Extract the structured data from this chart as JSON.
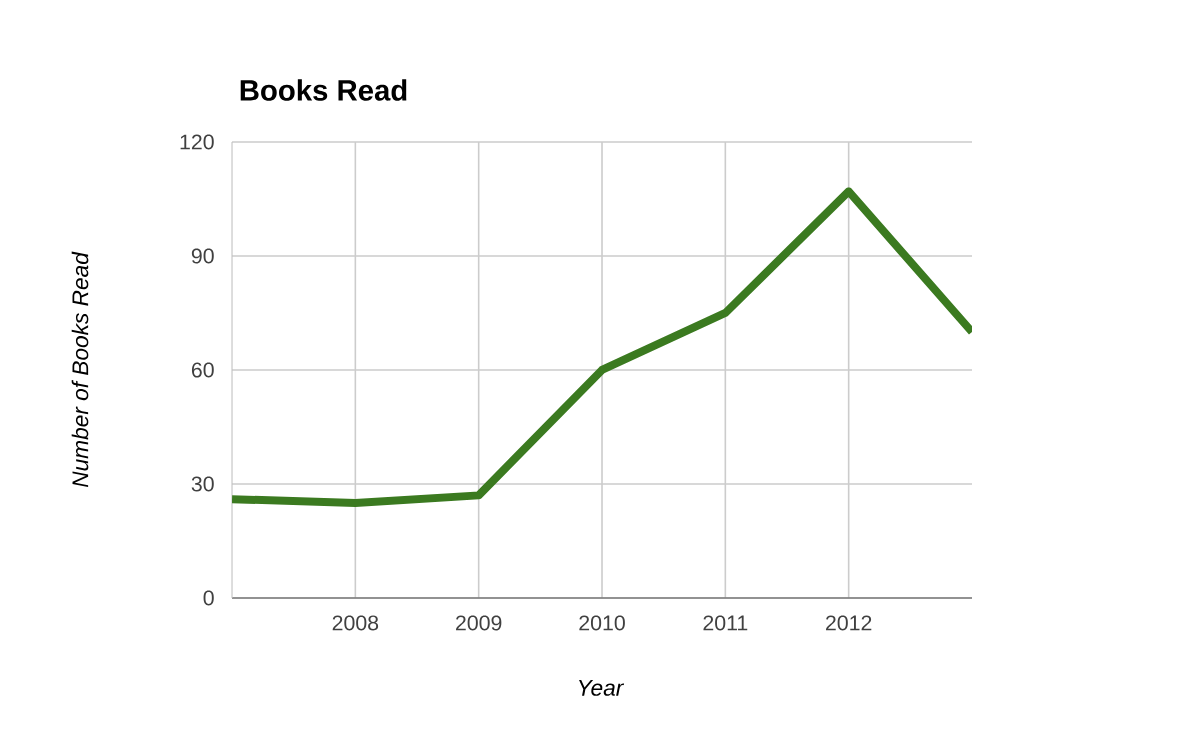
{
  "chart_data": {
    "type": "line",
    "title": "Books Read",
    "xlabel": "Year",
    "ylabel": "Number of Books Read",
    "x": [
      2007,
      2008,
      2009,
      2010,
      2011,
      2012,
      2013
    ],
    "series": [
      {
        "color": "#3b7a20",
        "values": [
          26,
          25,
          27,
          60,
          75,
          107,
          70
        ]
      }
    ],
    "xlim": [
      2007,
      2013
    ],
    "xticks": [
      2008,
      2009,
      2010,
      2011,
      2012
    ],
    "ylim": [
      0,
      120
    ],
    "yticks": [
      0,
      30,
      60,
      90,
      120
    ],
    "grid": true,
    "marker": "none",
    "line_style": "solid"
  }
}
